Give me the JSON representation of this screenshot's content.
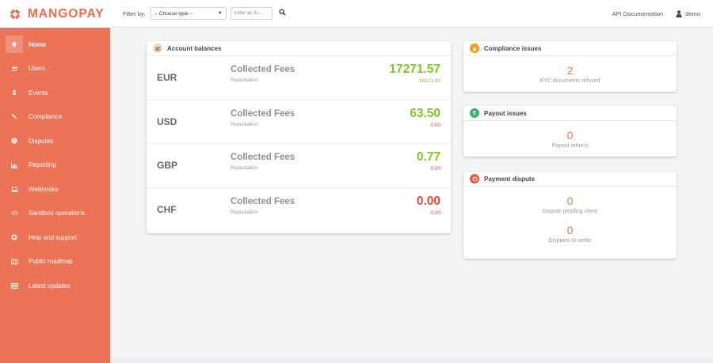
{
  "brand": {
    "name": "MANGOPAY"
  },
  "sidebar": {
    "items": [
      {
        "label": "Home",
        "icon": "home-icon",
        "active": true
      },
      {
        "label": "Users",
        "icon": "users-icon"
      },
      {
        "label": "Events",
        "icon": "dollar-icon"
      },
      {
        "label": "Compliance",
        "icon": "gavel-icon"
      },
      {
        "label": "Disputes",
        "icon": "exclamation-icon"
      },
      {
        "label": "Reporting",
        "icon": "bar-chart-icon"
      },
      {
        "label": "Webhooks",
        "icon": "laptop-icon"
      },
      {
        "label": "Sandbox operations",
        "icon": "code-icon"
      },
      {
        "label": "Help and support",
        "icon": "lifebuoy-icon"
      },
      {
        "label": "Public roadmap",
        "icon": "map-icon"
      },
      {
        "label": "Latest updates",
        "icon": "newspaper-icon"
      }
    ]
  },
  "topbar": {
    "filter_label": "Filter by:",
    "filter_select": "-- Choose type --",
    "id_placeholder": "Enter an ID...",
    "api_link": "API Documentation",
    "user": "demo"
  },
  "balances": {
    "title": "Account balances",
    "rows": [
      {
        "currency": "EUR",
        "label": "Collected Fees",
        "sublabel": "Repudiation",
        "amount": "17271.57",
        "sub_amount": "16121.00",
        "amount_color": "green",
        "sub_color": "green"
      },
      {
        "currency": "USD",
        "label": "Collected Fees",
        "sublabel": "Repudiation",
        "amount": "63.50",
        "sub_amount": "0.00",
        "amount_color": "green",
        "sub_color": "red"
      },
      {
        "currency": "GBP",
        "label": "Collected Fees",
        "sublabel": "Repudiation",
        "amount": "0.77",
        "sub_amount": "0.00",
        "amount_color": "green",
        "sub_color": "red"
      },
      {
        "currency": "CHF",
        "label": "Collected Fees",
        "sublabel": "Repudiation",
        "amount": "0.00",
        "sub_amount": "0.00",
        "amount_color": "red",
        "sub_color": "red"
      }
    ]
  },
  "compliance": {
    "title": "Compliance issues",
    "value": "2",
    "caption": "KYC documents refused"
  },
  "payout": {
    "title": "Payout issues",
    "value": "0",
    "caption": "Payout returns"
  },
  "dispute": {
    "title": "Payment dispute",
    "stats": [
      {
        "value": "0",
        "caption": "Dispute pending client"
      },
      {
        "value": "0",
        "caption": "Disputes to settle"
      }
    ]
  },
  "colors": {
    "brand": "#ec7356",
    "green": "#7ec823",
    "red": "#e8473d",
    "stat": "#ec7a4d"
  }
}
